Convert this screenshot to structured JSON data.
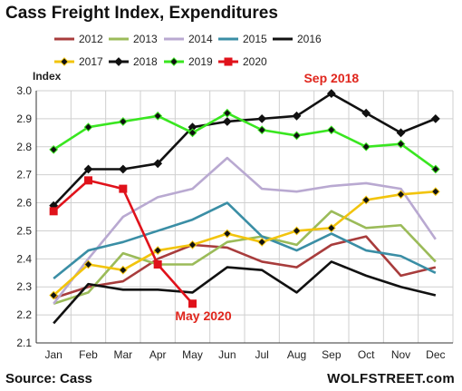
{
  "title": "Cass Freight Index, Expenditures",
  "source": "Source: Cass",
  "brand": "WOLFSTREET.com",
  "chart_data": {
    "type": "line",
    "ylabel": "Index",
    "ylim": [
      2.1,
      3.0
    ],
    "yticks": [
      "2.1",
      "2.2",
      "2.3",
      "2.4",
      "2.5",
      "2.6",
      "2.7",
      "2.8",
      "2.9",
      "3.0"
    ],
    "categories": [
      "Jan",
      "Feb",
      "Mar",
      "Apr",
      "May",
      "Jun",
      "Jul",
      "Aug",
      "Sep",
      "Oct",
      "Nov",
      "Dec"
    ],
    "grid": true,
    "legend_position": "top",
    "series": [
      {
        "name": "2012",
        "color": "#a83c3c",
        "marker": "none",
        "values": [
          2.26,
          2.3,
          2.32,
          2.4,
          2.45,
          2.44,
          2.39,
          2.37,
          2.45,
          2.48,
          2.34,
          2.37
        ]
      },
      {
        "name": "2013",
        "color": "#9bbb59",
        "marker": "none",
        "values": [
          2.24,
          2.28,
          2.42,
          2.38,
          2.38,
          2.46,
          2.48,
          2.45,
          2.57,
          2.51,
          2.52,
          2.39
        ]
      },
      {
        "name": "2014",
        "color": "#b9a9d1",
        "marker": "none",
        "values": [
          2.24,
          2.4,
          2.55,
          2.62,
          2.65,
          2.76,
          2.65,
          2.64,
          2.66,
          2.67,
          2.65,
          2.47
        ]
      },
      {
        "name": "2015",
        "color": "#3a8ea5",
        "marker": "none",
        "values": [
          2.33,
          2.43,
          2.46,
          2.5,
          2.54,
          2.6,
          2.48,
          2.43,
          2.49,
          2.43,
          2.41,
          2.35
        ]
      },
      {
        "name": "2016",
        "color": "#111111",
        "marker": "none",
        "values": [
          2.17,
          2.31,
          2.29,
          2.29,
          2.28,
          2.37,
          2.36,
          2.28,
          2.39,
          2.34,
          2.3,
          2.27
        ]
      },
      {
        "name": "2017",
        "color": "#f2c40d",
        "marker": "diamond",
        "values": [
          2.27,
          2.38,
          2.36,
          2.43,
          2.45,
          2.49,
          2.46,
          2.5,
          2.51,
          2.61,
          2.63,
          2.64
        ]
      },
      {
        "name": "2018",
        "color": "#111111",
        "marker": "diamond",
        "values": [
          2.59,
          2.72,
          2.72,
          2.74,
          2.87,
          2.89,
          2.9,
          2.91,
          2.99,
          2.92,
          2.85,
          2.9
        ]
      },
      {
        "name": "2019",
        "color": "#39e620",
        "marker": "diamond",
        "values": [
          2.79,
          2.87,
          2.89,
          2.91,
          2.85,
          2.92,
          2.86,
          2.84,
          2.86,
          2.8,
          2.81,
          2.72
        ]
      },
      {
        "name": "2020",
        "color": "#e0121b",
        "marker": "square",
        "values": [
          2.57,
          2.68,
          2.65,
          2.38,
          2.24,
          null,
          null,
          null,
          null,
          null,
          null,
          null
        ]
      }
    ],
    "annotations": [
      {
        "text": "Sep 2018",
        "x": "Sep",
        "y": 2.99
      },
      {
        "text": "May 2020",
        "x": "May",
        "y": 2.24
      }
    ]
  }
}
